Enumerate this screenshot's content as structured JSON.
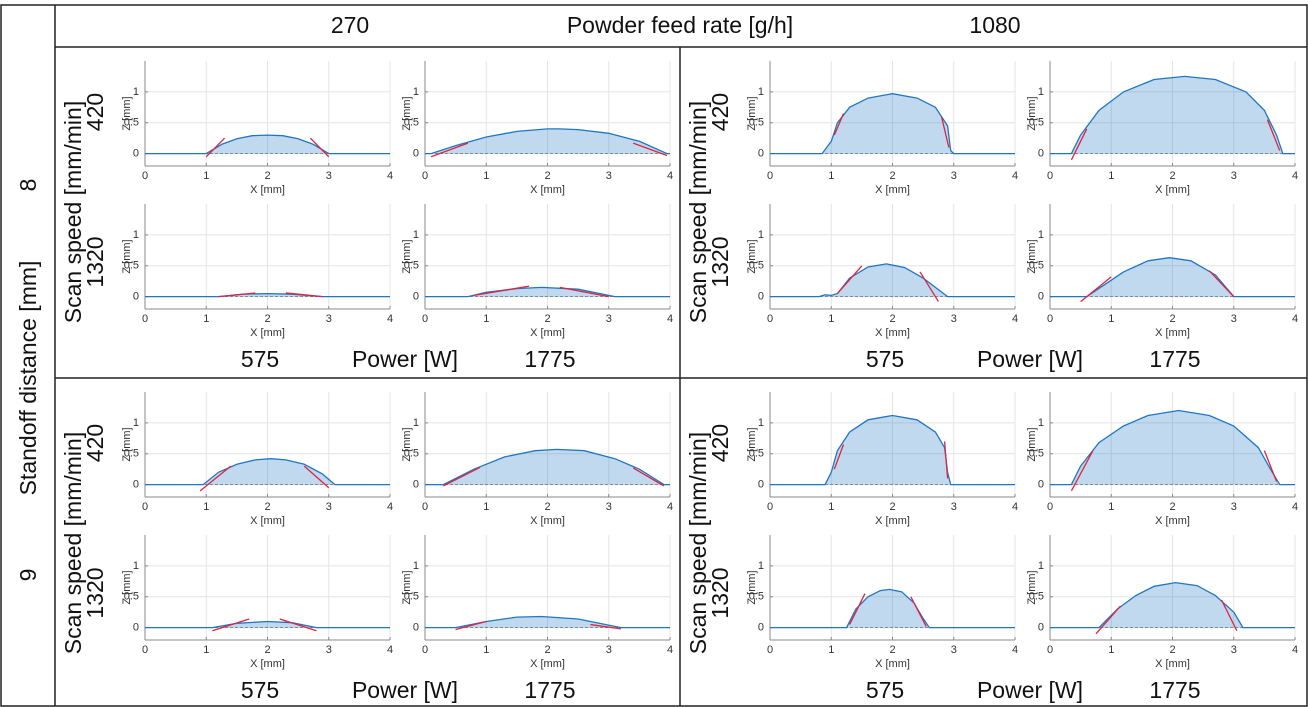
{
  "header": {
    "feed_low": 270,
    "feed_label": "Powder feed rate [g/h]",
    "feed_high": 1080
  },
  "rows": {
    "standoff_label": "Standoff distance [mm]",
    "standoff_values": [
      8,
      9
    ]
  },
  "quadrants": [
    {
      "speed_label": "Scan speed [mm/min]",
      "speeds": [
        420,
        1320
      ],
      "powers": [
        575,
        1775
      ],
      "power_label": "Power [W]"
    },
    {
      "speed_label": "Scan speed [mm/min]",
      "speeds": [
        420,
        1320
      ],
      "powers": [
        575,
        1775
      ],
      "power_label": "Power [W]"
    },
    {
      "speed_label": "Scan speed [mm/min]",
      "speeds": [
        420,
        1320
      ],
      "powers": [
        575,
        1775
      ],
      "power_label": "Power [W]"
    },
    {
      "speed_label": "Scan speed [mm/min]",
      "speeds": [
        420,
        1320
      ],
      "powers": [
        575,
        1775
      ],
      "power_label": "Power [W]"
    }
  ],
  "chart_data": [
    {
      "type": "line",
      "x_label": "X [mm]",
      "y_label": "Z [mm]",
      "xlim": [
        0,
        4
      ],
      "ylim": [
        -0.2,
        1.5
      ],
      "xticks": [
        0,
        1,
        2,
        3,
        4
      ],
      "yticks": [
        0,
        0.5,
        1
      ],
      "grid": true,
      "color": "#1f77c4",
      "tangent_color": "#e0243c",
      "x": [
        0,
        1,
        1.25,
        1.5,
        1.75,
        2,
        2.25,
        2.5,
        2.75,
        3,
        4
      ],
      "values": [
        0,
        0,
        0.15,
        0.24,
        0.29,
        0.3,
        0.29,
        0.24,
        0.15,
        0,
        0
      ],
      "tangents": [
        [
          1.0,
          -0.05,
          1.3,
          0.25
        ],
        [
          2.7,
          0.25,
          3.0,
          -0.05
        ]
      ]
    },
    {
      "type": "line",
      "x_label": "X [mm]",
      "y_label": "Z [mm]",
      "xlim": [
        0,
        4
      ],
      "ylim": [
        -0.2,
        1.5
      ],
      "xticks": [
        0,
        1,
        2,
        3,
        4
      ],
      "yticks": [
        0,
        0.5,
        1
      ],
      "grid": true,
      "color": "#1f77c4",
      "tangent_color": "#e0243c",
      "x": [
        0,
        0.1,
        0.5,
        1,
        1.5,
        2,
        2.2,
        2.5,
        3,
        3.5,
        3.95,
        4
      ],
      "values": [
        0,
        0,
        0.13,
        0.27,
        0.36,
        0.4,
        0.4,
        0.39,
        0.33,
        0.2,
        0,
        0
      ],
      "tangents": [
        [
          0.1,
          -0.05,
          0.7,
          0.17
        ],
        [
          3.4,
          0.17,
          3.95,
          -0.03
        ]
      ]
    },
    {
      "type": "line",
      "x_label": "X [mm]",
      "y_label": "Z [mm]",
      "xlim": [
        0,
        4
      ],
      "ylim": [
        -0.2,
        1.5
      ],
      "xticks": [
        0,
        1,
        2,
        3,
        4
      ],
      "yticks": [
        0,
        0.5,
        1
      ],
      "grid": true,
      "color": "#1f77c4",
      "tangent_color": "#e0243c",
      "x": [
        0,
        1.2,
        1.6,
        2,
        2.4,
        2.9,
        4
      ],
      "values": [
        0,
        0,
        0.04,
        0.05,
        0.04,
        0,
        0
      ],
      "tangents": [
        [
          1.2,
          0,
          1.8,
          0.06
        ],
        [
          2.3,
          0.06,
          2.9,
          0
        ]
      ]
    },
    {
      "type": "line",
      "x_label": "X [mm]",
      "y_label": "Z [mm]",
      "xlim": [
        0,
        4
      ],
      "ylim": [
        -0.2,
        1.5
      ],
      "xticks": [
        0,
        1,
        2,
        3,
        4
      ],
      "yticks": [
        0,
        0.5,
        1
      ],
      "grid": true,
      "color": "#1f77c4",
      "tangent_color": "#e0243c",
      "x": [
        0,
        0.7,
        1,
        1.5,
        1.9,
        2.5,
        3.1,
        4
      ],
      "values": [
        0,
        0,
        0.07,
        0.13,
        0.15,
        0.12,
        0,
        0
      ],
      "tangents": [
        [
          0.8,
          0.02,
          1.7,
          0.17
        ],
        [
          2.2,
          0.15,
          3.0,
          0
        ]
      ]
    },
    {
      "type": "line",
      "x_label": "X [mm]",
      "y_label": "Z [mm]",
      "xlim": [
        0,
        4
      ],
      "ylim": [
        -0.2,
        1.5
      ],
      "xticks": [
        0,
        1,
        2,
        3,
        4
      ],
      "yticks": [
        0,
        0.5,
        1
      ],
      "grid": true,
      "color": "#1f77c4",
      "tangent_color": "#e0243c",
      "x": [
        0,
        0.85,
        1,
        1.1,
        1.3,
        1.6,
        2,
        2.4,
        2.7,
        2.9,
        2.95,
        3,
        4
      ],
      "values": [
        0,
        0,
        0.2,
        0.5,
        0.75,
        0.9,
        0.97,
        0.9,
        0.75,
        0.45,
        0.05,
        0,
        0
      ],
      "tangents": [
        [
          1.05,
          0.3,
          1.2,
          0.65
        ],
        [
          2.8,
          0.6,
          2.92,
          0.1
        ]
      ]
    },
    {
      "type": "line",
      "x_label": "X [mm]",
      "y_label": "Z [mm]",
      "xlim": [
        0,
        4
      ],
      "ylim": [
        -0.2,
        1.5
      ],
      "xticks": [
        0,
        1,
        2,
        3,
        4
      ],
      "yticks": [
        0,
        0.5,
        1
      ],
      "grid": true,
      "color": "#1f77c4",
      "tangent_color": "#e0243c",
      "x": [
        0,
        0.35,
        0.5,
        0.8,
        1.2,
        1.7,
        2.2,
        2.7,
        3.2,
        3.5,
        3.7,
        3.8,
        4
      ],
      "values": [
        0,
        0,
        0.3,
        0.7,
        1.0,
        1.2,
        1.25,
        1.2,
        1.0,
        0.7,
        0.3,
        0,
        0
      ],
      "tangents": [
        [
          0.35,
          -0.1,
          0.6,
          0.4
        ],
        [
          3.55,
          0.55,
          3.75,
          0.05
        ]
      ]
    },
    {
      "type": "line",
      "x_label": "X [mm]",
      "y_label": "Z [mm]",
      "xlim": [
        0,
        4
      ],
      "ylim": [
        -0.2,
        1.5
      ],
      "xticks": [
        0,
        1,
        2,
        3,
        4
      ],
      "yticks": [
        0,
        0.5,
        1
      ],
      "grid": true,
      "color": "#1f77c4",
      "tangent_color": "#e0243c",
      "x": [
        0,
        0.8,
        0.9,
        1.0,
        1.1,
        1.3,
        1.6,
        1.9,
        2.2,
        2.5,
        2.7,
        2.9,
        4
      ],
      "values": [
        0,
        0,
        0.03,
        0.02,
        0.05,
        0.3,
        0.48,
        0.53,
        0.47,
        0.3,
        0.15,
        0,
        0
      ],
      "tangents": [
        [
          1.1,
          0.05,
          1.5,
          0.5
        ],
        [
          2.45,
          0.4,
          2.75,
          -0.08
        ]
      ]
    },
    {
      "type": "line",
      "x_label": "X [mm]",
      "y_label": "Z [mm]",
      "xlim": [
        0,
        4
      ],
      "ylim": [
        -0.2,
        1.5
      ],
      "xticks": [
        0,
        1,
        2,
        3,
        4
      ],
      "yticks": [
        0,
        0.5,
        1
      ],
      "grid": true,
      "color": "#1f77c4",
      "tangent_color": "#e0243c",
      "x": [
        0,
        0.6,
        0.9,
        1.2,
        1.6,
        1.95,
        2.3,
        2.7,
        3,
        4
      ],
      "values": [
        0,
        0,
        0.2,
        0.4,
        0.58,
        0.63,
        0.58,
        0.35,
        0,
        0
      ],
      "tangents": [
        [
          0.5,
          -0.08,
          1.0,
          0.32
        ],
        [
          2.6,
          0.42,
          3.0,
          0
        ]
      ]
    },
    {
      "type": "line",
      "x_label": "X [mm]",
      "y_label": "Z [mm]",
      "xlim": [
        0,
        4
      ],
      "ylim": [
        -0.2,
        1.5
      ],
      "xticks": [
        0,
        1,
        2,
        3,
        4
      ],
      "yticks": [
        0,
        0.5,
        1
      ],
      "grid": true,
      "color": "#1f77c4",
      "tangent_color": "#e0243c",
      "x": [
        0,
        0.95,
        1.2,
        1.5,
        1.8,
        2.05,
        2.3,
        2.6,
        2.9,
        3.1,
        4
      ],
      "values": [
        0,
        0,
        0.2,
        0.33,
        0.4,
        0.42,
        0.4,
        0.33,
        0.17,
        0,
        0
      ],
      "tangents": [
        [
          0.9,
          -0.1,
          1.4,
          0.3
        ],
        [
          2.6,
          0.3,
          3.0,
          -0.05
        ]
      ]
    },
    {
      "type": "line",
      "x_label": "X [mm]",
      "y_label": "Z [mm]",
      "xlim": [
        0,
        4
      ],
      "ylim": [
        -0.2,
        1.5
      ],
      "xticks": [
        0,
        1,
        2,
        3,
        4
      ],
      "yticks": [
        0,
        0.5,
        1
      ],
      "grid": true,
      "color": "#1f77c4",
      "tangent_color": "#e0243c",
      "x": [
        0,
        0.3,
        0.8,
        1.3,
        1.8,
        2.15,
        2.6,
        3.1,
        3.5,
        3.9,
        4
      ],
      "values": [
        0,
        0,
        0.25,
        0.45,
        0.55,
        0.57,
        0.55,
        0.42,
        0.25,
        0,
        0
      ],
      "tangents": [
        [
          0.3,
          -0.02,
          0.9,
          0.28
        ],
        [
          3.4,
          0.27,
          3.9,
          -0.02
        ]
      ]
    },
    {
      "type": "line",
      "x_label": "X [mm]",
      "y_label": "Z [mm]",
      "xlim": [
        0,
        4
      ],
      "ylim": [
        -0.2,
        1.5
      ],
      "xticks": [
        0,
        1,
        2,
        3,
        4
      ],
      "yticks": [
        0,
        0.5,
        1
      ],
      "grid": true,
      "color": "#1f77c4",
      "tangent_color": "#e0243c",
      "x": [
        0,
        1.1,
        1.5,
        2,
        2.4,
        2.8,
        4
      ],
      "values": [
        0,
        0,
        0.07,
        0.1,
        0.08,
        0,
        0
      ],
      "tangents": [
        [
          1.1,
          -0.05,
          1.7,
          0.14
        ],
        [
          2.2,
          0.14,
          2.8,
          -0.05
        ]
      ]
    },
    {
      "type": "line",
      "x_label": "X [mm]",
      "y_label": "Z [mm]",
      "xlim": [
        0,
        4
      ],
      "ylim": [
        -0.2,
        1.5
      ],
      "xticks": [
        0,
        1,
        2,
        3,
        4
      ],
      "yticks": [
        0,
        0.5,
        1
      ],
      "grid": true,
      "color": "#1f77c4",
      "tangent_color": "#e0243c",
      "x": [
        0,
        0.5,
        1,
        1.5,
        1.9,
        2.5,
        3.2,
        4
      ],
      "values": [
        0,
        0,
        0.1,
        0.17,
        0.18,
        0.14,
        0,
        0
      ],
      "tangents": [
        [
          0.5,
          -0.03,
          1.0,
          0.1
        ],
        [
          2.7,
          0.05,
          3.2,
          -0.02
        ]
      ]
    },
    {
      "type": "line",
      "x_label": "X [mm]",
      "y_label": "Z [mm]",
      "xlim": [
        0,
        4
      ],
      "ylim": [
        -0.2,
        1.5
      ],
      "xticks": [
        0,
        1,
        2,
        3,
        4
      ],
      "yticks": [
        0,
        0.5,
        1
      ],
      "grid": true,
      "color": "#1f77c4",
      "tangent_color": "#e0243c",
      "x": [
        0,
        0.9,
        1.0,
        1.1,
        1.3,
        1.6,
        2,
        2.4,
        2.7,
        2.85,
        2.9,
        2.95,
        4
      ],
      "values": [
        0,
        0,
        0.2,
        0.55,
        0.85,
        1.05,
        1.12,
        1.05,
        0.85,
        0.6,
        0.2,
        0,
        0
      ],
      "tangents": [
        [
          1.05,
          0.25,
          1.2,
          0.65
        ],
        [
          2.85,
          0.7,
          2.9,
          0.1
        ]
      ]
    },
    {
      "type": "line",
      "x_label": "X [mm]",
      "y_label": "Z [mm]",
      "xlim": [
        0,
        4
      ],
      "ylim": [
        -0.2,
        1.5
      ],
      "xticks": [
        0,
        1,
        2,
        3,
        4
      ],
      "yticks": [
        0,
        0.5,
        1
      ],
      "grid": true,
      "color": "#1f77c4",
      "tangent_color": "#e0243c",
      "x": [
        0,
        0.35,
        0.5,
        0.8,
        1.2,
        1.6,
        2.1,
        2.6,
        3,
        3.4,
        3.6,
        3.75,
        4
      ],
      "values": [
        0,
        0,
        0.3,
        0.68,
        0.95,
        1.12,
        1.2,
        1.12,
        0.95,
        0.6,
        0.25,
        0,
        0
      ],
      "tangents": [
        [
          0.35,
          -0.1,
          0.7,
          0.55
        ],
        [
          3.5,
          0.55,
          3.7,
          0.05
        ]
      ]
    },
    {
      "type": "line",
      "x_label": "X [mm]",
      "y_label": "Z [mm]",
      "xlim": [
        0,
        4
      ],
      "ylim": [
        -0.2,
        1.5
      ],
      "xticks": [
        0,
        1,
        2,
        3,
        4
      ],
      "yticks": [
        0,
        0.5,
        1
      ],
      "grid": true,
      "color": "#1f77c4",
      "tangent_color": "#e0243c",
      "x": [
        0,
        1.25,
        1.4,
        1.6,
        1.8,
        1.95,
        2.15,
        2.35,
        2.5,
        2.6,
        4
      ],
      "values": [
        0,
        0,
        0.3,
        0.5,
        0.6,
        0.62,
        0.58,
        0.4,
        0.15,
        0,
        0
      ],
      "tangents": [
        [
          1.3,
          0.05,
          1.55,
          0.55
        ],
        [
          2.3,
          0.5,
          2.55,
          0.02
        ]
      ]
    },
    {
      "type": "line",
      "x_label": "X [mm]",
      "y_label": "Z [mm]",
      "xlim": [
        0,
        4
      ],
      "ylim": [
        -0.2,
        1.5
      ],
      "xticks": [
        0,
        1,
        2,
        3,
        4
      ],
      "yticks": [
        0,
        0.5,
        1
      ],
      "grid": true,
      "color": "#1f77c4",
      "tangent_color": "#e0243c",
      "x": [
        0,
        0.8,
        1.1,
        1.4,
        1.7,
        2.05,
        2.4,
        2.7,
        3,
        3.15,
        4
      ],
      "values": [
        0,
        0,
        0.3,
        0.52,
        0.67,
        0.73,
        0.68,
        0.52,
        0.25,
        0,
        0
      ],
      "tangents": [
        [
          0.75,
          -0.1,
          1.15,
          0.35
        ],
        [
          2.8,
          0.45,
          3.05,
          -0.05
        ]
      ]
    }
  ]
}
